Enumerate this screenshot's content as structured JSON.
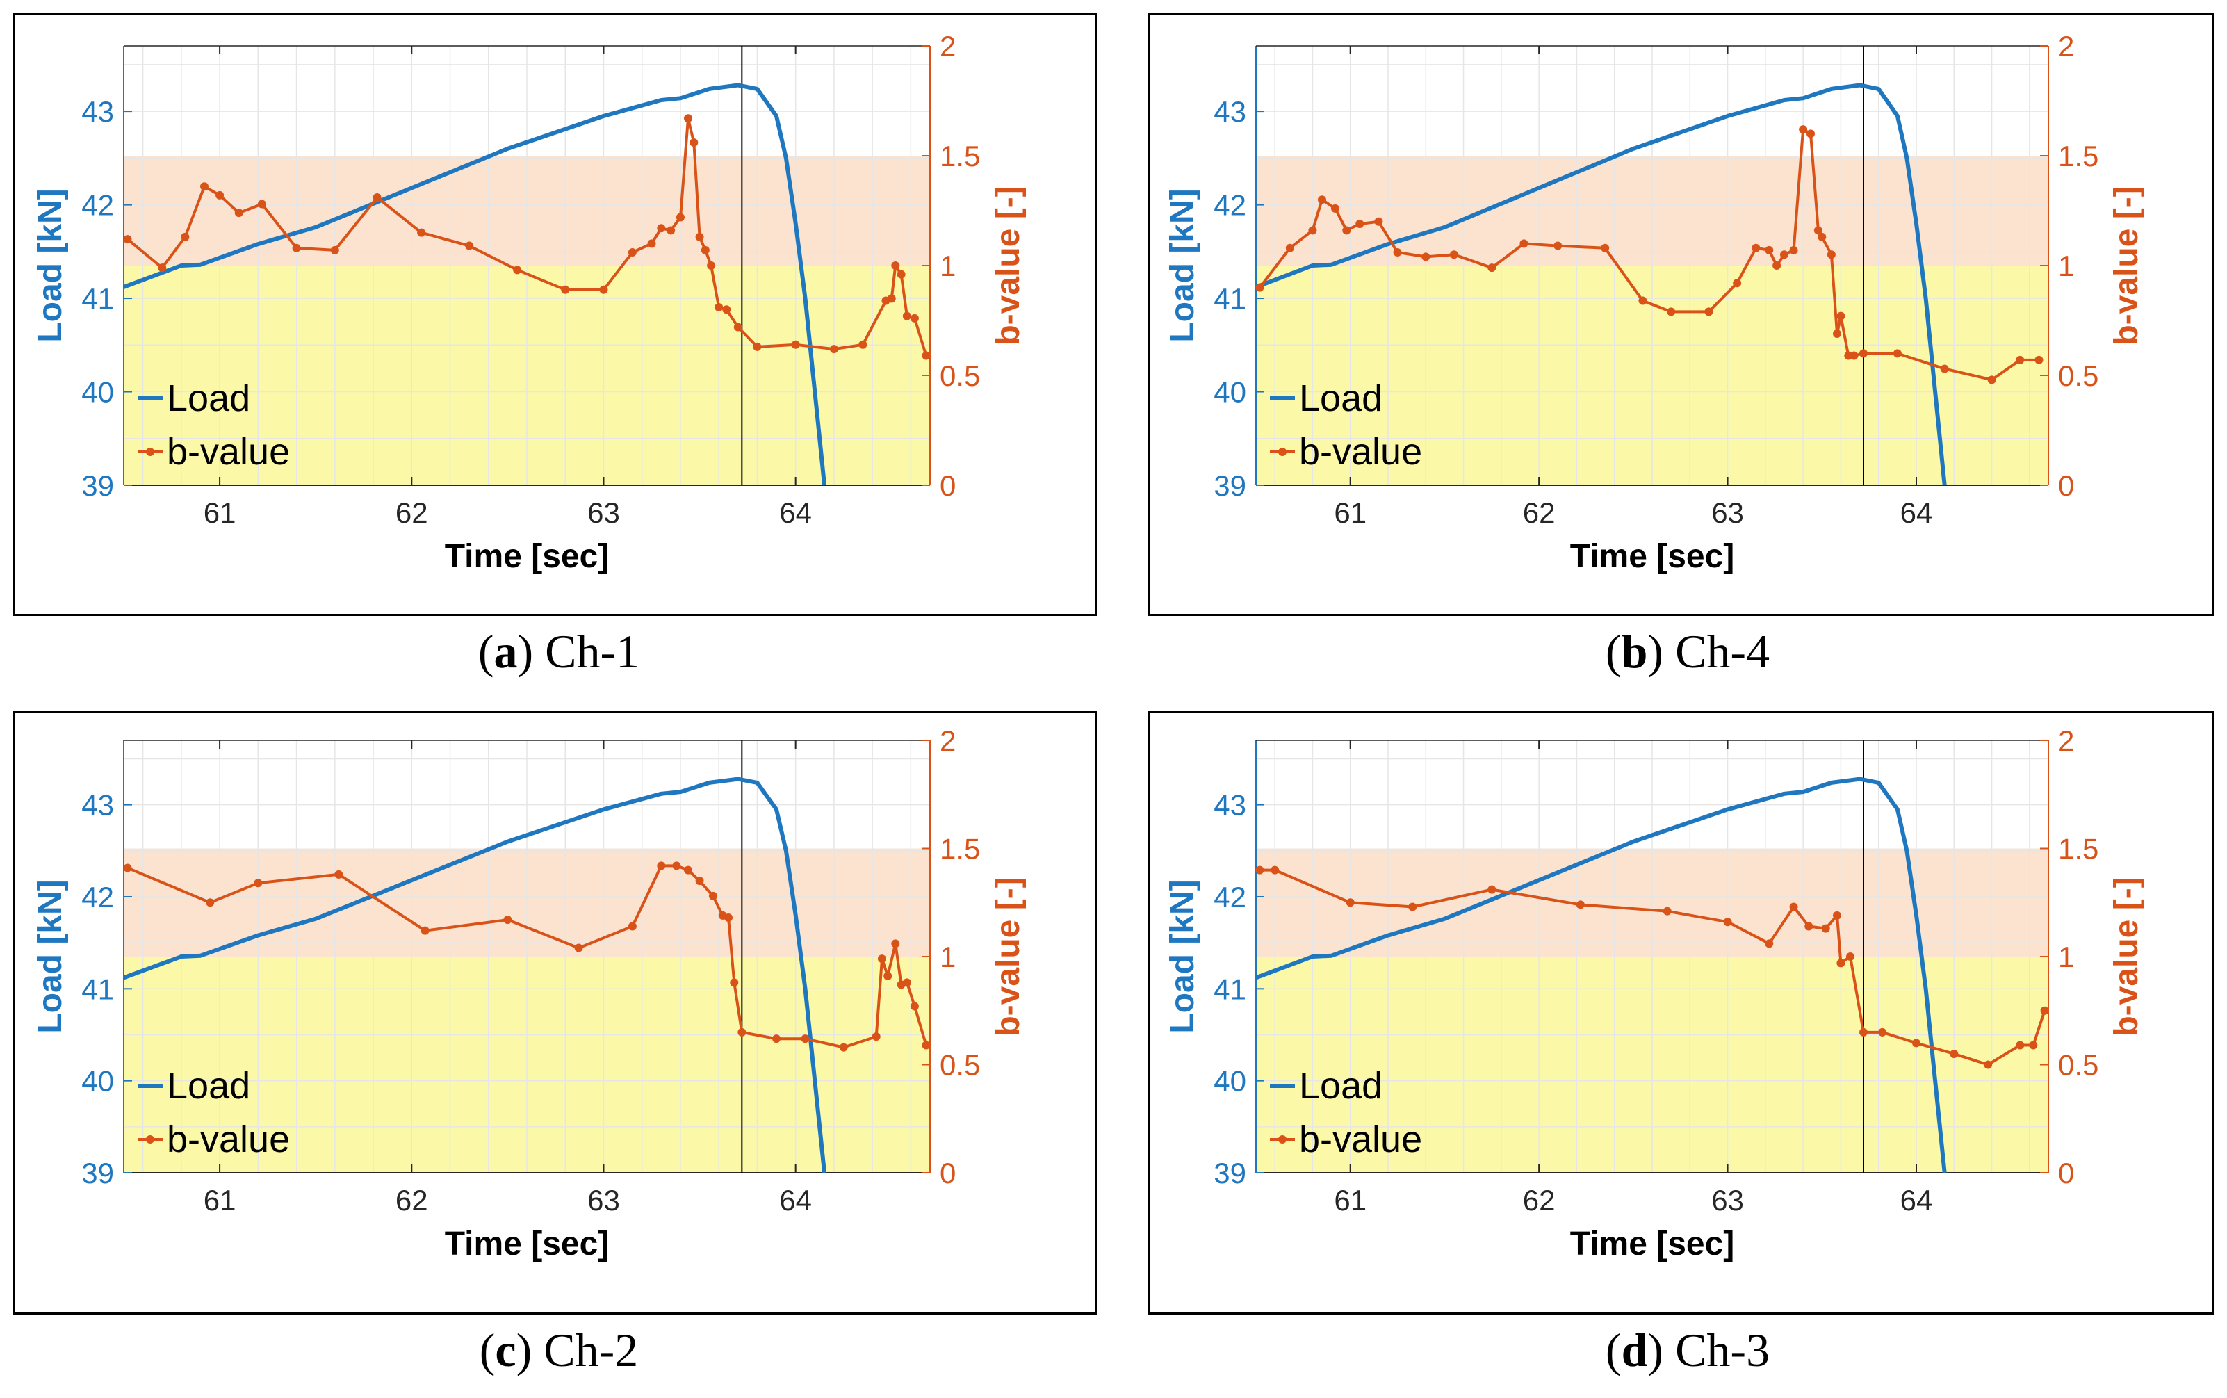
{
  "colors": {
    "load": "#1f77c0",
    "load_after": "#4aa0b4",
    "bvalue": "#d95319",
    "band_high": "#fbe3cf",
    "band_low": "#fbf9a7",
    "marker_line": "#000000",
    "grid": "#e6e6e6"
  },
  "panels": [
    {
      "id": "a",
      "caption_letter": "a",
      "caption_text": "Ch-1"
    },
    {
      "id": "b",
      "caption_letter": "b",
      "caption_text": "Ch-4"
    },
    {
      "id": "c",
      "caption_letter": "c",
      "caption_text": "Ch-2"
    },
    {
      "id": "d",
      "caption_letter": "d",
      "caption_text": "Ch-3"
    }
  ],
  "chart_data": [
    {
      "type": "line",
      "panel": "a",
      "xlabel": "Time [sec]",
      "ylabel_left": "Load [kN]",
      "ylabel_right": "b-value [-]",
      "xlim": [
        60.5,
        64.7
      ],
      "ylim_left": [
        39,
        43.7
      ],
      "ylim_right": [
        0,
        2
      ],
      "xticks": [
        "61",
        "62",
        "63",
        "64"
      ],
      "yticks_left": [
        "39",
        "40",
        "41",
        "42",
        "43"
      ],
      "yticks_right": [
        "0",
        "0.5",
        "1",
        "1.5",
        "2"
      ],
      "grid": true,
      "legend_position": "bottom-left",
      "bands_right": [
        {
          "from": 1.0,
          "to": 1.5,
          "color": "band_high"
        },
        {
          "from": 0,
          "to": 1.0,
          "color": "band_low"
        }
      ],
      "vertical_line_x": 63.72,
      "series": [
        {
          "name": "Load",
          "axis": "left",
          "x": [
            60.5,
            60.8,
            60.9,
            61.2,
            61.5,
            62.0,
            62.5,
            63.0,
            63.3,
            63.4,
            63.55,
            63.7,
            63.8,
            63.9,
            63.95,
            64.0,
            64.05,
            64.1,
            64.15
          ],
          "y": [
            41.12,
            41.35,
            41.36,
            41.58,
            41.76,
            42.18,
            42.6,
            42.95,
            43.12,
            43.14,
            43.24,
            43.28,
            43.24,
            42.95,
            42.5,
            41.8,
            41.0,
            40.0,
            39.0
          ]
        },
        {
          "name": "b-value",
          "axis": "right",
          "x": [
            60.52,
            60.7,
            60.82,
            60.92,
            61.0,
            61.1,
            61.22,
            61.4,
            61.6,
            61.82,
            62.05,
            62.3,
            62.55,
            62.8,
            63.0,
            63.15,
            63.25,
            63.3,
            63.35,
            63.4,
            63.44,
            63.47,
            63.5,
            63.53,
            63.56,
            63.6,
            63.64,
            63.7,
            63.8,
            64.0,
            64.2,
            64.35,
            64.47,
            64.5,
            64.52,
            64.55,
            64.58,
            64.62,
            64.68
          ],
          "y": [
            1.12,
            0.99,
            1.13,
            1.36,
            1.32,
            1.24,
            1.28,
            1.08,
            1.07,
            1.31,
            1.15,
            1.09,
            0.98,
            0.89,
            0.89,
            1.06,
            1.1,
            1.17,
            1.16,
            1.22,
            1.67,
            1.56,
            1.13,
            1.07,
            1.0,
            0.81,
            0.8,
            0.72,
            0.63,
            0.64,
            0.62,
            0.64,
            0.84,
            0.85,
            1.0,
            0.96,
            0.77,
            0.76,
            0.59
          ]
        }
      ]
    },
    {
      "type": "line",
      "panel": "b",
      "xlabel": "Time [sec]",
      "ylabel_left": "Load [kN]",
      "ylabel_right": "b-value [-]",
      "xlim": [
        60.5,
        64.7
      ],
      "ylim_left": [
        39,
        43.7
      ],
      "ylim_right": [
        0,
        2
      ],
      "xticks": [
        "61",
        "62",
        "63",
        "64"
      ],
      "yticks_left": [
        "39",
        "40",
        "41",
        "42",
        "43"
      ],
      "yticks_right": [
        "0",
        "0.5",
        "1",
        "1.5",
        "2"
      ],
      "grid": true,
      "legend_position": "bottom-left",
      "bands_right": [
        {
          "from": 1.0,
          "to": 1.5,
          "color": "band_high"
        },
        {
          "from": 0,
          "to": 1.0,
          "color": "band_low"
        }
      ],
      "vertical_line_x": 63.72,
      "series": [
        {
          "name": "Load",
          "axis": "left",
          "x": [
            60.5,
            60.8,
            60.9,
            61.2,
            61.5,
            62.0,
            62.5,
            63.0,
            63.3,
            63.4,
            63.55,
            63.7,
            63.8,
            63.9,
            63.95,
            64.0,
            64.05,
            64.1,
            64.15
          ],
          "y": [
            41.12,
            41.35,
            41.36,
            41.58,
            41.76,
            42.18,
            42.6,
            42.95,
            43.12,
            43.14,
            43.24,
            43.28,
            43.24,
            42.95,
            42.5,
            41.8,
            41.0,
            40.0,
            39.0
          ]
        },
        {
          "name": "b-value",
          "axis": "right",
          "x": [
            60.52,
            60.68,
            60.8,
            60.85,
            60.92,
            60.98,
            61.05,
            61.15,
            61.25,
            61.4,
            61.55,
            61.75,
            61.92,
            62.1,
            62.35,
            62.55,
            62.7,
            62.9,
            63.05,
            63.15,
            63.22,
            63.26,
            63.3,
            63.35,
            63.4,
            63.44,
            63.48,
            63.5,
            63.55,
            63.58,
            63.6,
            63.64,
            63.67,
            63.72,
            63.9,
            64.15,
            64.4,
            64.55,
            64.65
          ],
          "y": [
            0.9,
            1.08,
            1.16,
            1.3,
            1.26,
            1.16,
            1.19,
            1.2,
            1.06,
            1.04,
            1.05,
            0.99,
            1.1,
            1.09,
            1.08,
            0.84,
            0.79,
            0.79,
            0.92,
            1.08,
            1.07,
            1.0,
            1.05,
            1.07,
            1.62,
            1.6,
            1.16,
            1.13,
            1.05,
            0.69,
            0.77,
            0.59,
            0.59,
            0.6,
            0.6,
            0.53,
            0.48,
            0.57,
            0.57
          ]
        }
      ]
    },
    {
      "type": "line",
      "panel": "c",
      "xlabel": "Time [sec]",
      "ylabel_left": "Load [kN]",
      "ylabel_right": "b-value [-]",
      "xlim": [
        60.5,
        64.7
      ],
      "ylim_left": [
        39,
        43.7
      ],
      "ylim_right": [
        0,
        2
      ],
      "xticks": [
        "61",
        "62",
        "63",
        "64"
      ],
      "yticks_left": [
        "39",
        "40",
        "41",
        "42",
        "43"
      ],
      "yticks_right": [
        "0",
        "0.5",
        "1",
        "1.5",
        "2"
      ],
      "grid": true,
      "legend_position": "bottom-left",
      "bands_right": [
        {
          "from": 1.0,
          "to": 1.5,
          "color": "band_high"
        },
        {
          "from": 0,
          "to": 1.0,
          "color": "band_low"
        }
      ],
      "vertical_line_x": 63.72,
      "series": [
        {
          "name": "Load",
          "axis": "left",
          "x": [
            60.5,
            60.8,
            60.9,
            61.2,
            61.5,
            62.0,
            62.5,
            63.0,
            63.3,
            63.4,
            63.55,
            63.7,
            63.8,
            63.9,
            63.95,
            64.0,
            64.05,
            64.1,
            64.15
          ],
          "y": [
            41.12,
            41.35,
            41.36,
            41.58,
            41.76,
            42.18,
            42.6,
            42.95,
            43.12,
            43.14,
            43.24,
            43.28,
            43.24,
            42.95,
            42.5,
            41.8,
            41.0,
            40.0,
            39.0
          ]
        },
        {
          "name": "b-value",
          "axis": "right",
          "x": [
            60.52,
            60.95,
            61.2,
            61.62,
            62.07,
            62.5,
            62.87,
            63.15,
            63.3,
            63.38,
            63.44,
            63.5,
            63.57,
            63.62,
            63.65,
            63.68,
            63.72,
            63.9,
            64.05,
            64.25,
            64.42,
            64.45,
            64.48,
            64.52,
            64.55,
            64.58,
            64.62,
            64.68
          ],
          "y": [
            1.41,
            1.25,
            1.34,
            1.38,
            1.12,
            1.17,
            1.04,
            1.14,
            1.42,
            1.42,
            1.4,
            1.35,
            1.28,
            1.19,
            1.18,
            0.88,
            0.65,
            0.62,
            0.62,
            0.58,
            0.63,
            0.99,
            0.91,
            1.06,
            0.87,
            0.88,
            0.77,
            0.59
          ]
        }
      ]
    },
    {
      "type": "line",
      "panel": "d",
      "xlabel": "Time [sec]",
      "ylabel_left": "Load [kN]",
      "ylabel_right": "b-value [-]",
      "xlim": [
        60.5,
        64.7
      ],
      "ylim_left": [
        39,
        43.7
      ],
      "ylim_right": [
        0,
        2
      ],
      "xticks": [
        "61",
        "62",
        "63",
        "64"
      ],
      "yticks_left": [
        "39",
        "40",
        "41",
        "42",
        "43"
      ],
      "yticks_right": [
        "0",
        "0.5",
        "1",
        "1.5",
        "2"
      ],
      "grid": true,
      "legend_position": "bottom-left",
      "bands_right": [
        {
          "from": 1.0,
          "to": 1.5,
          "color": "band_high"
        },
        {
          "from": 0,
          "to": 1.0,
          "color": "band_low"
        }
      ],
      "vertical_line_x": 63.72,
      "series": [
        {
          "name": "Load",
          "axis": "left",
          "x": [
            60.5,
            60.8,
            60.9,
            61.2,
            61.5,
            62.0,
            62.5,
            63.0,
            63.3,
            63.4,
            63.55,
            63.7,
            63.8,
            63.9,
            63.95,
            64.0,
            64.05,
            64.1,
            64.15
          ],
          "y": [
            41.12,
            41.35,
            41.36,
            41.58,
            41.76,
            42.18,
            42.6,
            42.95,
            43.12,
            43.14,
            43.24,
            43.28,
            43.24,
            42.95,
            42.5,
            41.8,
            41.0,
            40.0,
            39.0
          ]
        },
        {
          "name": "b-value",
          "axis": "right",
          "x": [
            60.52,
            60.6,
            61.0,
            61.33,
            61.75,
            62.22,
            62.68,
            63.0,
            63.22,
            63.35,
            63.43,
            63.52,
            63.58,
            63.6,
            63.65,
            63.72,
            63.82,
            64.0,
            64.2,
            64.38,
            64.55,
            64.62,
            64.68
          ],
          "y": [
            1.4,
            1.4,
            1.25,
            1.23,
            1.31,
            1.24,
            1.21,
            1.16,
            1.06,
            1.23,
            1.14,
            1.13,
            1.19,
            0.97,
            1.0,
            0.65,
            0.65,
            0.6,
            0.55,
            0.5,
            0.59,
            0.59,
            0.75
          ]
        }
      ]
    }
  ]
}
